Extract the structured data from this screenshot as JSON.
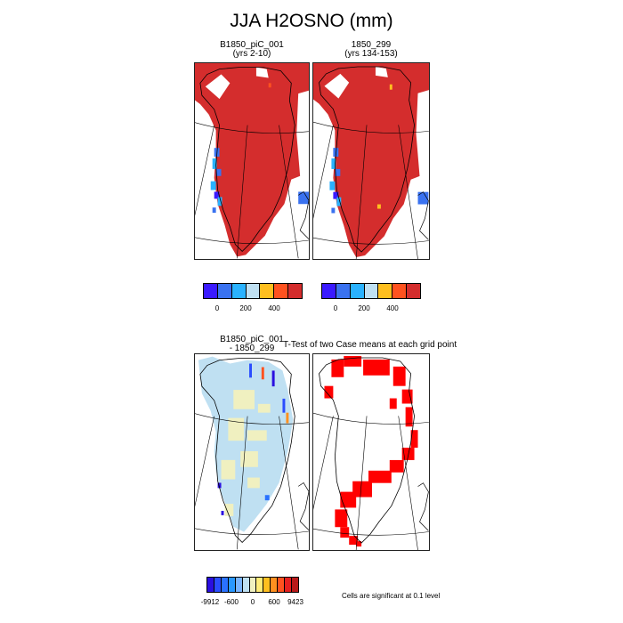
{
  "title": "JJA H2OSNO (mm)",
  "colors": {
    "snow_high": "#d42d2d",
    "sig": "#ff0000",
    "coast": "#000000",
    "bar1": [
      "#3a1aff",
      "#3a72f0",
      "#2ab2ff",
      "#bfe0f2",
      "#ffbf1f",
      "#ff521f",
      "#d42d2d"
    ],
    "bar2": [
      "#2a0fe0",
      "#2a4dff",
      "#2a72ff",
      "#2a98ff",
      "#7ab4ff",
      "#bfe0f2",
      "#f0f0c0",
      "#ffec7a",
      "#ffbf1f",
      "#ff8f1f",
      "#ff521f",
      "#e61f1f",
      "#b81a1a"
    ]
  },
  "chart_data": [
    {
      "type": "heatmap",
      "title": "B1850_piC_001",
      "subtitle": "(yrs 2-10)",
      "colorbar_ticks": [
        "0",
        "200",
        "400"
      ]
    },
    {
      "type": "heatmap",
      "title": "1850_299",
      "subtitle": "(yrs 134-153)",
      "colorbar_ticks": [
        "0",
        "200",
        "400"
      ]
    },
    {
      "type": "heatmap",
      "title": "B1850_piC_001",
      "subtitle": "- 1850_299",
      "colorbar_ticks": [
        "-9912",
        "-600",
        "0",
        "600",
        "9423"
      ]
    },
    {
      "type": "heatmap",
      "title": "T-Test of two Case means at each grid point",
      "note": "Cells are significant at 0.1 level"
    }
  ]
}
